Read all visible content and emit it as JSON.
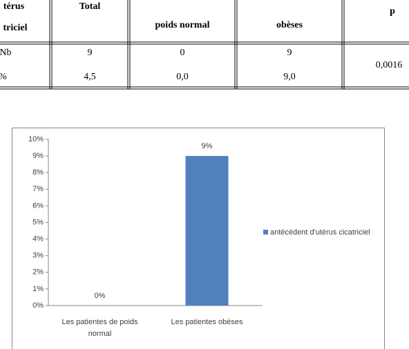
{
  "table": {
    "header": [
      [
        "térus",
        "triciel"
      ],
      "Total",
      "poids normal",
      "obèses",
      "p"
    ],
    "rows": [
      [
        "Nb",
        "9",
        "0",
        "9",
        "0,0016"
      ],
      [
        "%",
        "4,5",
        "0,0",
        "9,0"
      ]
    ]
  },
  "chart_data": {
    "type": "bar",
    "categories": [
      "Les patientes de poids normal",
      "Les patientes obèses"
    ],
    "series": [
      {
        "name": "antécédent d'utérus cicatriciel",
        "color": "#4f81bd",
        "values": [
          0,
          9
        ],
        "value_labels": [
          "0%",
          "9%"
        ]
      }
    ],
    "ylim": [
      0,
      10
    ],
    "yticks": [
      {
        "value": 0,
        "label": "0%"
      },
      {
        "value": 1,
        "label": "1%"
      },
      {
        "value": 2,
        "label": "2%"
      },
      {
        "value": 3,
        "label": "3%"
      },
      {
        "value": 4,
        "label": "4%"
      },
      {
        "value": 5,
        "label": "5%"
      },
      {
        "value": 6,
        "label": "6%"
      },
      {
        "value": 7,
        "label": "7%"
      },
      {
        "value": 8,
        "label": "8%"
      },
      {
        "value": 9,
        "label": "9%"
      },
      {
        "value": 10,
        "label": "10%"
      }
    ],
    "legend": "right",
    "grid": false
  }
}
